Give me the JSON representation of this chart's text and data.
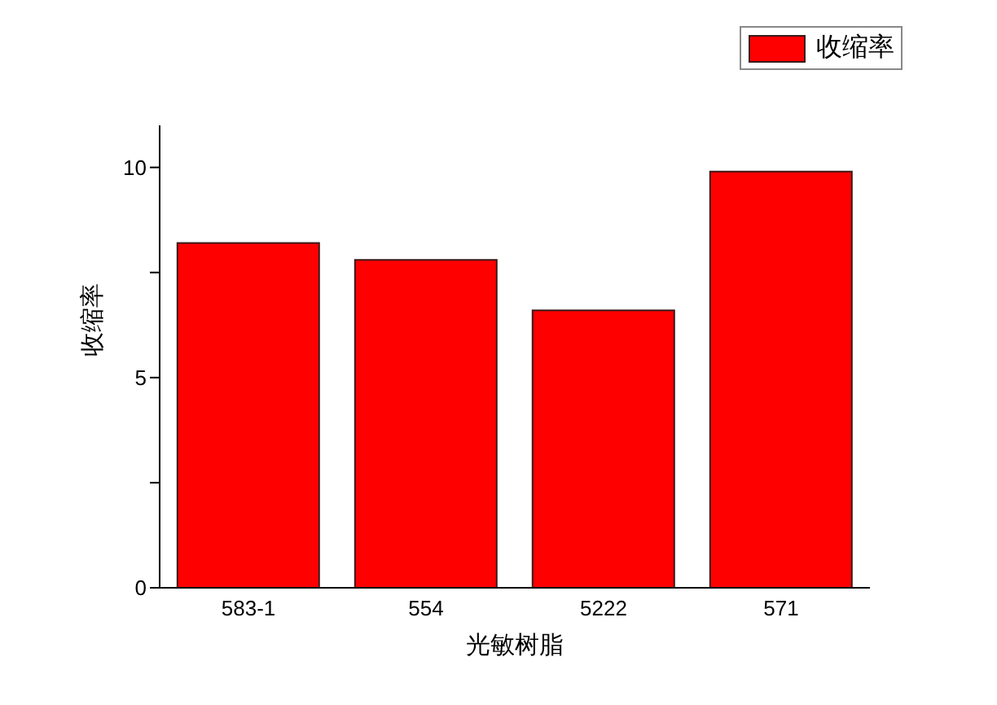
{
  "chart_data": {
    "type": "bar",
    "xlabel": "光敏树脂",
    "ylabel": "收缩率",
    "categories": [
      "583-1",
      "554",
      "5222",
      "571"
    ],
    "series": [
      {
        "name": "收缩率",
        "color": "#ff0000",
        "values": [
          8.2,
          7.8,
          6.6,
          9.9
        ]
      }
    ],
    "ylim": [
      0,
      11
    ],
    "yticks": [
      0,
      {
        "value": 2.5,
        "label": null
      },
      5,
      {
        "value": 7.5,
        "label": null
      },
      10
    ],
    "legend": "top right",
    "grid": false
  }
}
